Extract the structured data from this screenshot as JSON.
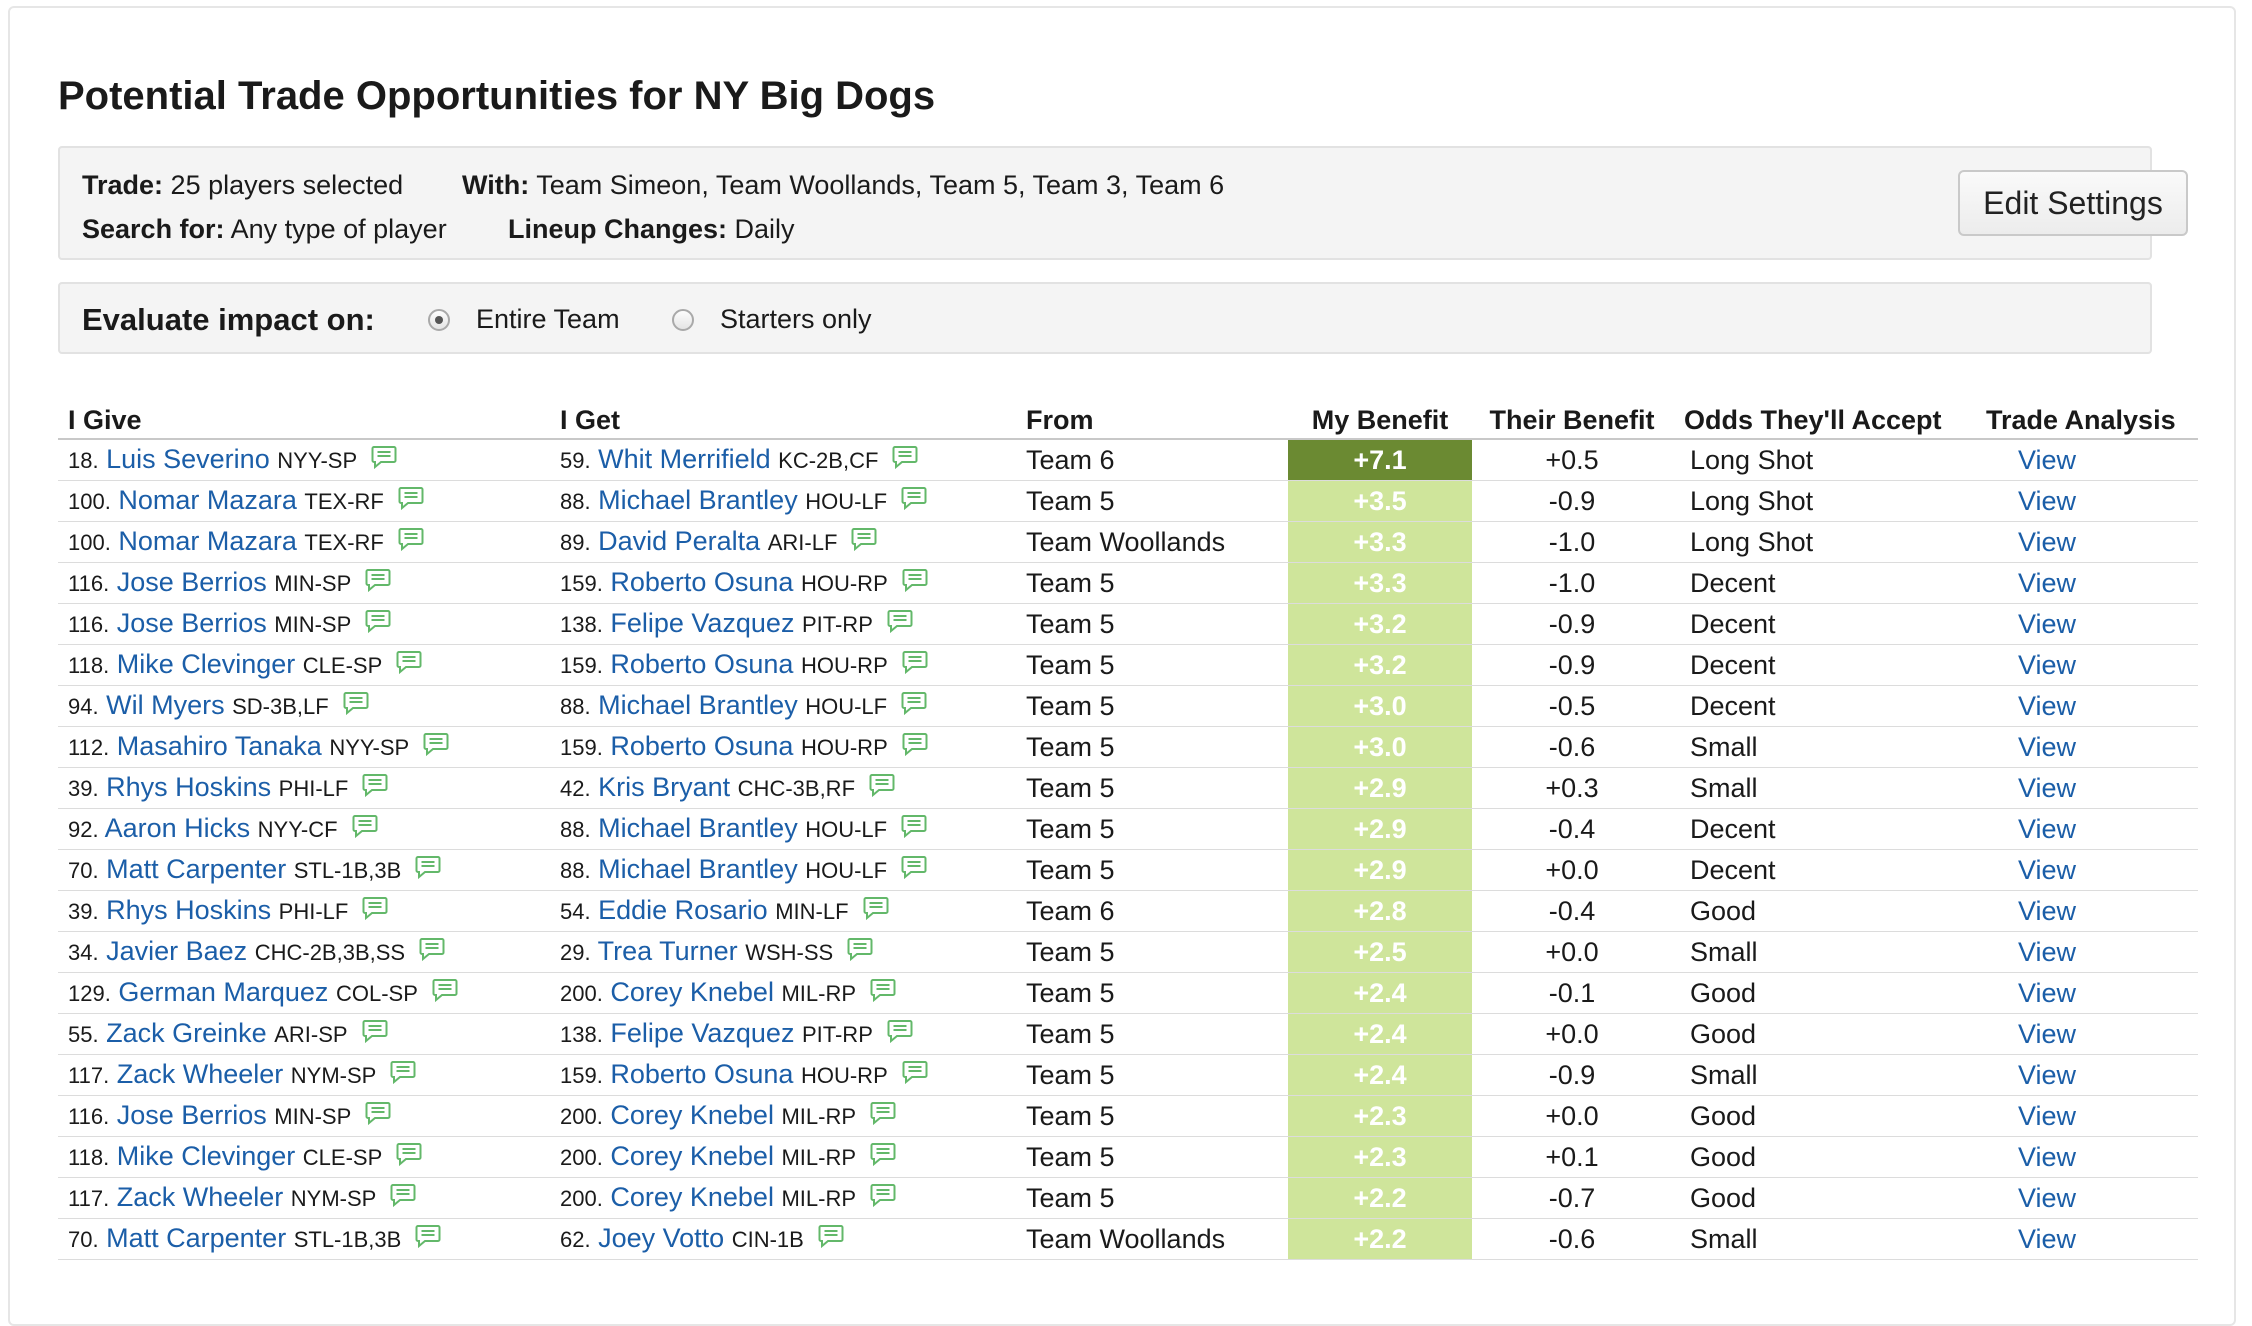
{
  "page": {
    "title": "Potential Trade Opportunities for NY Big Dogs"
  },
  "settings": {
    "trade_label": "Trade:",
    "trade_value": "25 players selected",
    "with_label": "With:",
    "with_value": "Team Simeon, Team Woollands, Team 5, Team 3, Team 6",
    "search_label": "Search for:",
    "search_value": "Any type of player",
    "lineup_label": "Lineup Changes:",
    "lineup_value": "Daily",
    "edit_button": "Edit Settings"
  },
  "evaluate": {
    "label": "Evaluate impact on:",
    "options": [
      {
        "label": "Entire Team",
        "checked": true
      },
      {
        "label": "Starters only",
        "checked": false
      }
    ]
  },
  "table": {
    "headers": {
      "give": "I Give",
      "get": "I Get",
      "from": "From",
      "my_benefit": "My Benefit",
      "their_benefit": "Their Benefit",
      "odds": "Odds They'll Accept",
      "analysis": "Trade Analysis"
    },
    "colors": {
      "top_benefit": "#6b8a32",
      "benefit": "#cfe59b"
    },
    "rows": [
      {
        "give_rank": "18.",
        "give_name": "Luis Severino",
        "give_pos": "NYY-SP",
        "get_rank": "59.",
        "get_name": "Whit Merrifield",
        "get_pos": "KC-2B,CF",
        "from": "Team 6",
        "my_benefit": "+7.1",
        "their_benefit": "+0.5",
        "odds": "Long Shot",
        "view": "View"
      },
      {
        "give_rank": "100.",
        "give_name": "Nomar Mazara",
        "give_pos": "TEX-RF",
        "get_rank": "88.",
        "get_name": "Michael Brantley",
        "get_pos": "HOU-LF",
        "from": "Team 5",
        "my_benefit": "+3.5",
        "their_benefit": "-0.9",
        "odds": "Long Shot",
        "view": "View"
      },
      {
        "give_rank": "100.",
        "give_name": "Nomar Mazara",
        "give_pos": "TEX-RF",
        "get_rank": "89.",
        "get_name": "David Peralta",
        "get_pos": "ARI-LF",
        "from": "Team Woollands",
        "my_benefit": "+3.3",
        "their_benefit": "-1.0",
        "odds": "Long Shot",
        "view": "View"
      },
      {
        "give_rank": "116.",
        "give_name": "Jose Berrios",
        "give_pos": "MIN-SP",
        "get_rank": "159.",
        "get_name": "Roberto Osuna",
        "get_pos": "HOU-RP",
        "from": "Team 5",
        "my_benefit": "+3.3",
        "their_benefit": "-1.0",
        "odds": "Decent",
        "view": "View"
      },
      {
        "give_rank": "116.",
        "give_name": "Jose Berrios",
        "give_pos": "MIN-SP",
        "get_rank": "138.",
        "get_name": "Felipe Vazquez",
        "get_pos": "PIT-RP",
        "from": "Team 5",
        "my_benefit": "+3.2",
        "their_benefit": "-0.9",
        "odds": "Decent",
        "view": "View"
      },
      {
        "give_rank": "118.",
        "give_name": "Mike Clevinger",
        "give_pos": "CLE-SP",
        "get_rank": "159.",
        "get_name": "Roberto Osuna",
        "get_pos": "HOU-RP",
        "from": "Team 5",
        "my_benefit": "+3.2",
        "their_benefit": "-0.9",
        "odds": "Decent",
        "view": "View"
      },
      {
        "give_rank": "94.",
        "give_name": "Wil Myers",
        "give_pos": "SD-3B,LF",
        "get_rank": "88.",
        "get_name": "Michael Brantley",
        "get_pos": "HOU-LF",
        "from": "Team 5",
        "my_benefit": "+3.0",
        "their_benefit": "-0.5",
        "odds": "Decent",
        "view": "View"
      },
      {
        "give_rank": "112.",
        "give_name": "Masahiro Tanaka",
        "give_pos": "NYY-SP",
        "get_rank": "159.",
        "get_name": "Roberto Osuna",
        "get_pos": "HOU-RP",
        "from": "Team 5",
        "my_benefit": "+3.0",
        "their_benefit": "-0.6",
        "odds": "Small",
        "view": "View"
      },
      {
        "give_rank": "39.",
        "give_name": "Rhys Hoskins",
        "give_pos": "PHI-LF",
        "get_rank": "42.",
        "get_name": "Kris Bryant",
        "get_pos": "CHC-3B,RF",
        "from": "Team 5",
        "my_benefit": "+2.9",
        "their_benefit": "+0.3",
        "odds": "Small",
        "view": "View"
      },
      {
        "give_rank": "92.",
        "give_name": "Aaron Hicks",
        "give_pos": "NYY-CF",
        "get_rank": "88.",
        "get_name": "Michael Brantley",
        "get_pos": "HOU-LF",
        "from": "Team 5",
        "my_benefit": "+2.9",
        "their_benefit": "-0.4",
        "odds": "Decent",
        "view": "View"
      },
      {
        "give_rank": "70.",
        "give_name": "Matt Carpenter",
        "give_pos": "STL-1B,3B",
        "get_rank": "88.",
        "get_name": "Michael Brantley",
        "get_pos": "HOU-LF",
        "from": "Team 5",
        "my_benefit": "+2.9",
        "their_benefit": "+0.0",
        "odds": "Decent",
        "view": "View"
      },
      {
        "give_rank": "39.",
        "give_name": "Rhys Hoskins",
        "give_pos": "PHI-LF",
        "get_rank": "54.",
        "get_name": "Eddie Rosario",
        "get_pos": "MIN-LF",
        "from": "Team 6",
        "my_benefit": "+2.8",
        "their_benefit": "-0.4",
        "odds": "Good",
        "view": "View"
      },
      {
        "give_rank": "34.",
        "give_name": "Javier Baez",
        "give_pos": "CHC-2B,3B,SS",
        "get_rank": "29.",
        "get_name": "Trea Turner",
        "get_pos": "WSH-SS",
        "from": "Team 5",
        "my_benefit": "+2.5",
        "their_benefit": "+0.0",
        "odds": "Small",
        "view": "View"
      },
      {
        "give_rank": "129.",
        "give_name": "German Marquez",
        "give_pos": "COL-SP",
        "get_rank": "200.",
        "get_name": "Corey Knebel",
        "get_pos": "MIL-RP",
        "from": "Team 5",
        "my_benefit": "+2.4",
        "their_benefit": "-0.1",
        "odds": "Good",
        "view": "View"
      },
      {
        "give_rank": "55.",
        "give_name": "Zack Greinke",
        "give_pos": "ARI-SP",
        "get_rank": "138.",
        "get_name": "Felipe Vazquez",
        "get_pos": "PIT-RP",
        "from": "Team 5",
        "my_benefit": "+2.4",
        "their_benefit": "+0.0",
        "odds": "Good",
        "view": "View"
      },
      {
        "give_rank": "117.",
        "give_name": "Zack Wheeler",
        "give_pos": "NYM-SP",
        "get_rank": "159.",
        "get_name": "Roberto Osuna",
        "get_pos": "HOU-RP",
        "from": "Team 5",
        "my_benefit": "+2.4",
        "their_benefit": "-0.9",
        "odds": "Small",
        "view": "View"
      },
      {
        "give_rank": "116.",
        "give_name": "Jose Berrios",
        "give_pos": "MIN-SP",
        "get_rank": "200.",
        "get_name": "Corey Knebel",
        "get_pos": "MIL-RP",
        "from": "Team 5",
        "my_benefit": "+2.3",
        "their_benefit": "+0.0",
        "odds": "Good",
        "view": "View"
      },
      {
        "give_rank": "118.",
        "give_name": "Mike Clevinger",
        "give_pos": "CLE-SP",
        "get_rank": "200.",
        "get_name": "Corey Knebel",
        "get_pos": "MIL-RP",
        "from": "Team 5",
        "my_benefit": "+2.3",
        "their_benefit": "+0.1",
        "odds": "Good",
        "view": "View"
      },
      {
        "give_rank": "117.",
        "give_name": "Zack Wheeler",
        "give_pos": "NYM-SP",
        "get_rank": "200.",
        "get_name": "Corey Knebel",
        "get_pos": "MIL-RP",
        "from": "Team 5",
        "my_benefit": "+2.2",
        "their_benefit": "-0.7",
        "odds": "Good",
        "view": "View"
      },
      {
        "give_rank": "70.",
        "give_name": "Matt Carpenter",
        "give_pos": "STL-1B,3B",
        "get_rank": "62.",
        "get_name": "Joey Votto",
        "get_pos": "CIN-1B",
        "from": "Team Woollands",
        "my_benefit": "+2.2",
        "their_benefit": "-0.6",
        "odds": "Small",
        "view": "View"
      }
    ]
  }
}
